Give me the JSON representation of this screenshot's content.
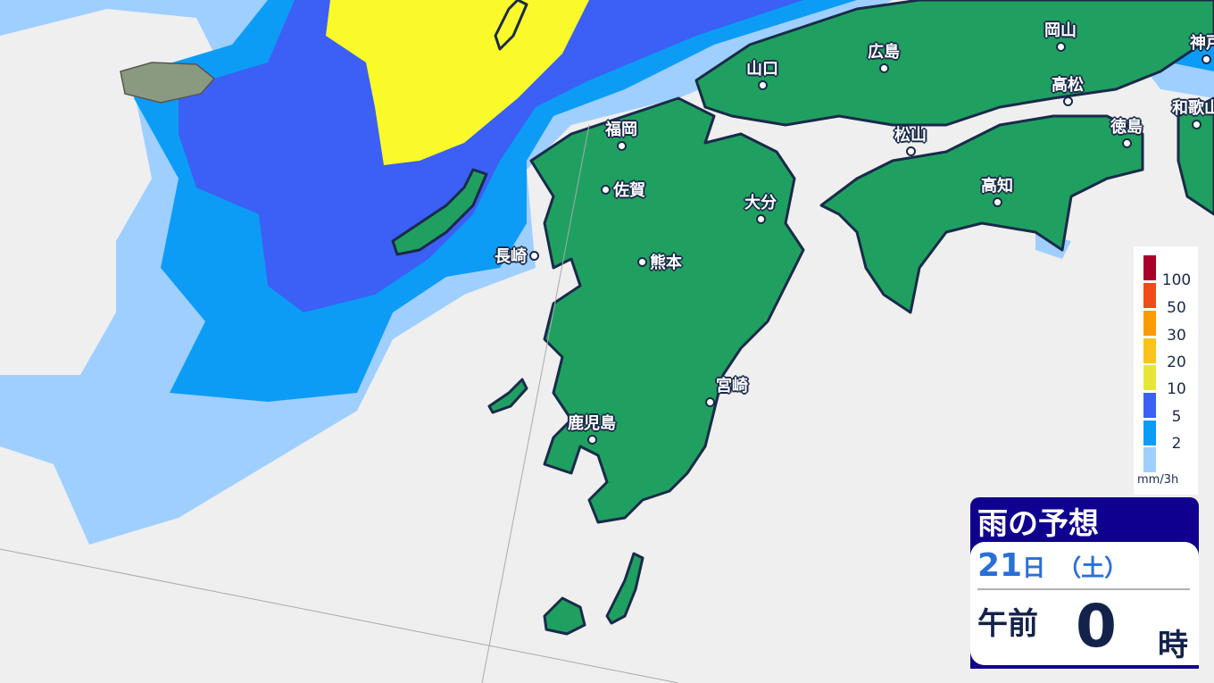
{
  "colors": {
    "background": "#efefef",
    "land": "#1fa060",
    "border": "#1a2a4a",
    "rain_lightblue": "#9fcfff",
    "rain_blue": "#0c9cf5",
    "rain_darkblue": "#3c5ff5",
    "rain_yellow": "#fafa2a"
  },
  "cities": [
    {
      "name": "岡山"
    },
    {
      "name": "神戸"
    },
    {
      "name": "広島"
    },
    {
      "name": "山口"
    },
    {
      "name": "高松"
    },
    {
      "name": "和歌山"
    },
    {
      "name": "福岡"
    },
    {
      "name": "徳島"
    },
    {
      "name": "松山"
    },
    {
      "name": "佐賀"
    },
    {
      "name": "高知"
    },
    {
      "name": "大分"
    },
    {
      "name": "長崎"
    },
    {
      "name": "熊本"
    },
    {
      "name": "宮崎"
    },
    {
      "name": "鹿児島"
    }
  ],
  "legend": {
    "items": [
      {
        "label": "100",
        "color": "#a8002a"
      },
      {
        "label": "50",
        "color": "#f24a1a"
      },
      {
        "label": "30",
        "color": "#fc9a06"
      },
      {
        "label": "20",
        "color": "#f8c41c"
      },
      {
        "label": "10",
        "color": "#e6e63a"
      },
      {
        "label": "5",
        "color": "#3c5ff5"
      },
      {
        "label": "2",
        "color": "#0c9cf5"
      },
      {
        "label": "",
        "color": "#9fcfff"
      }
    ],
    "unit": "mm/3h"
  },
  "panel": {
    "title": "雨の予想",
    "day": "21",
    "day_unit": "日",
    "weekday": "（土）",
    "ampm": "午前",
    "hour": "0",
    "hour_unit": "時"
  }
}
